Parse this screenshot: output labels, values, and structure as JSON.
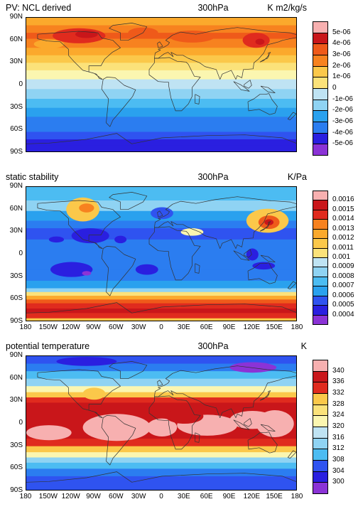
{
  "colors": {
    "pv_palette": [
      "#8b33d6",
      "#2a1fe0",
      "#2f53f0",
      "#2b7df0",
      "#2aa1ee",
      "#4cbcf2",
      "#8fd3f3",
      "#bfe3f3",
      "#fbf6b0",
      "#fbe27a",
      "#fbc84a",
      "#fba92c",
      "#f7821f",
      "#ef5a1a",
      "#e02b1e",
      "#c9161a",
      "#f7b0b0"
    ],
    "ss_palette": [
      "#8b33d6",
      "#2a1fe0",
      "#2f53f0",
      "#2b7df0",
      "#2aa1ee",
      "#4cbcf2",
      "#8fd3f3",
      "#bfe3f3",
      "#fbf6b0",
      "#fbe27a",
      "#fbc84a",
      "#fba92c",
      "#f7821f",
      "#ef5a1a",
      "#e02b1e",
      "#c9161a",
      "#f7b0b0"
    ],
    "pt_palette": [
      "#8b33d6",
      "#2a1fe0",
      "#2f53f0",
      "#2b7df0",
      "#4cbcf2",
      "#8fd3f3",
      "#bfe3f3",
      "#fbf6b0",
      "#fbe27a",
      "#fbc84a",
      "#f7821f",
      "#e02b1e",
      "#c9161a",
      "#f7b0b0"
    ],
    "coast": "#333333"
  },
  "lat_labels": [
    "90N",
    "60N",
    "30N",
    "0",
    "30S",
    "60S",
    "90S"
  ],
  "lon_labels": [
    "180",
    "150W",
    "120W",
    "90W",
    "60W",
    "30W",
    "0",
    "30E",
    "60E",
    "90E",
    "120E",
    "150E",
    "180"
  ],
  "panels": [
    {
      "id": "pv",
      "title_left": "PV: NCL derived",
      "title_center": "300hPa",
      "title_right": "K m2/kg/s",
      "show_lon_labels": false,
      "palette_key": "pv_palette",
      "colorbar_labels": [
        "5e-06",
        "4e-06",
        "3e-06",
        "2e-06",
        "1e-06",
        "0",
        "-1e-06",
        "-2e-06",
        "-3e-06",
        "-4e-06",
        "-5e-06"
      ]
    },
    {
      "id": "ss",
      "title_left": "static stability",
      "title_center": "300hPa",
      "title_right": "K/Pa",
      "show_lon_labels": true,
      "palette_key": "ss_palette",
      "colorbar_labels": [
        "0.0016",
        "0.0015",
        "0.0014",
        "0.0013",
        "0.0012",
        "0.0011",
        "0.001",
        "0.0009",
        "0.0008",
        "0.0007",
        "0.0006",
        "0.0005",
        "0.0004"
      ]
    },
    {
      "id": "pt",
      "title_left": "potential temperature",
      "title_center": "300hPa",
      "title_right": "K",
      "show_lon_labels": true,
      "palette_key": "pt_palette",
      "colorbar_labels": [
        "340",
        "336",
        "332",
        "328",
        "324",
        "320",
        "316",
        "312",
        "308",
        "304",
        "300"
      ]
    }
  ]
}
